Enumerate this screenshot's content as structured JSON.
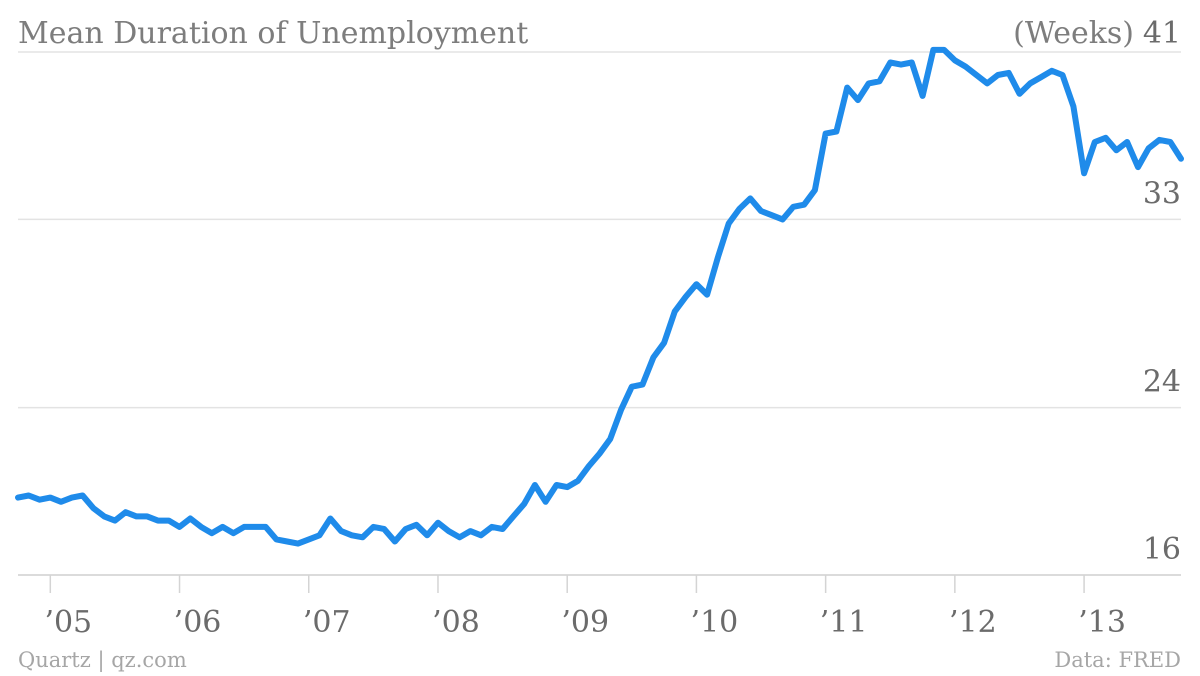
{
  "footer": {
    "source_left": "Quartz | qz.com",
    "source_right": "Data: FRED"
  },
  "chart_data": {
    "type": "line",
    "title": "Mean Duration of Unemployment",
    "unit_label": "(Weeks)",
    "ylim": [
      16,
      41
    ],
    "yticks": [
      16,
      24,
      33,
      41
    ],
    "xlim": [
      2004.75,
      2013.75
    ],
    "x_tick_labels": [
      {
        "label": "’05",
        "year": 2005
      },
      {
        "label": "’06",
        "year": 2006
      },
      {
        "label": "’07",
        "year": 2007
      },
      {
        "label": "’08",
        "year": 2008
      },
      {
        "label": "’09",
        "year": 2009
      },
      {
        "label": "’10",
        "year": 2010
      },
      {
        "label": "’11",
        "year": 2011
      },
      {
        "label": "’12",
        "year": 2012
      },
      {
        "label": "’13",
        "year": 2013
      }
    ],
    "grid": true,
    "color": "#1f8bea",
    "series": [
      {
        "x": [
          2004.75,
          2004.833,
          2004.917,
          2005.0,
          2005.083,
          2005.167,
          2005.25,
          2005.333,
          2005.417,
          2005.5,
          2005.583,
          2005.667,
          2005.75,
          2005.833,
          2005.917,
          2006.0,
          2006.083,
          2006.167,
          2006.25,
          2006.333,
          2006.417,
          2006.5,
          2006.583,
          2006.667,
          2006.75,
          2006.833,
          2006.917,
          2007.0,
          2007.083,
          2007.167,
          2007.25,
          2007.333,
          2007.417,
          2007.5,
          2007.583,
          2007.667,
          2007.75,
          2007.833,
          2007.917,
          2008.0,
          2008.083,
          2008.167,
          2008.25,
          2008.333,
          2008.417,
          2008.5,
          2008.583,
          2008.667,
          2008.75,
          2008.833,
          2008.917,
          2009.0,
          2009.083,
          2009.167,
          2009.25,
          2009.333,
          2009.417,
          2009.5,
          2009.583,
          2009.667,
          2009.75,
          2009.833,
          2009.917,
          2010.0,
          2010.083,
          2010.167,
          2010.25,
          2010.333,
          2010.417,
          2010.5,
          2010.583,
          2010.667,
          2010.75,
          2010.833,
          2010.917,
          2011.0,
          2011.083,
          2011.167,
          2011.25,
          2011.333,
          2011.417,
          2011.5,
          2011.583,
          2011.667,
          2011.75,
          2011.833,
          2011.917,
          2012.0,
          2012.083,
          2012.167,
          2012.25,
          2012.333,
          2012.417,
          2012.5,
          2012.583,
          2012.667,
          2012.75,
          2012.833,
          2012.917,
          2013.0,
          2013.083,
          2013.167,
          2013.25,
          2013.333,
          2013.417,
          2013.5,
          2013.583,
          2013.667,
          2013.75
        ],
        "values": [
          19.7,
          19.8,
          19.6,
          19.7,
          19.5,
          19.7,
          19.8,
          19.2,
          18.8,
          18.6,
          19.0,
          18.8,
          18.8,
          18.6,
          18.6,
          18.3,
          18.7,
          18.3,
          18.0,
          18.3,
          18.0,
          18.3,
          18.3,
          18.3,
          17.7,
          17.6,
          17.5,
          17.7,
          17.9,
          18.7,
          18.1,
          17.9,
          17.8,
          18.3,
          18.2,
          17.6,
          18.2,
          18.4,
          17.9,
          18.5,
          18.1,
          17.8,
          18.1,
          17.9,
          18.3,
          18.2,
          18.8,
          19.4,
          20.3,
          19.5,
          20.3,
          20.2,
          20.5,
          21.2,
          21.8,
          22.5,
          23.9,
          25.0,
          25.1,
          26.4,
          27.1,
          28.6,
          29.3,
          29.9,
          29.4,
          31.2,
          32.8,
          33.5,
          34.0,
          33.4,
          33.2,
          33.0,
          33.6,
          33.7,
          34.4,
          37.1,
          37.2,
          39.3,
          38.7,
          39.5,
          39.6,
          40.5,
          40.4,
          40.5,
          38.9,
          41.1,
          41.1,
          40.6,
          40.3,
          39.9,
          39.5,
          39.9,
          40.0,
          39.0,
          39.5,
          39.8,
          40.1,
          39.9,
          38.4,
          35.2,
          36.7,
          36.9,
          36.3,
          36.7,
          35.5,
          36.4,
          36.8,
          36.7,
          35.9
        ]
      }
    ]
  }
}
